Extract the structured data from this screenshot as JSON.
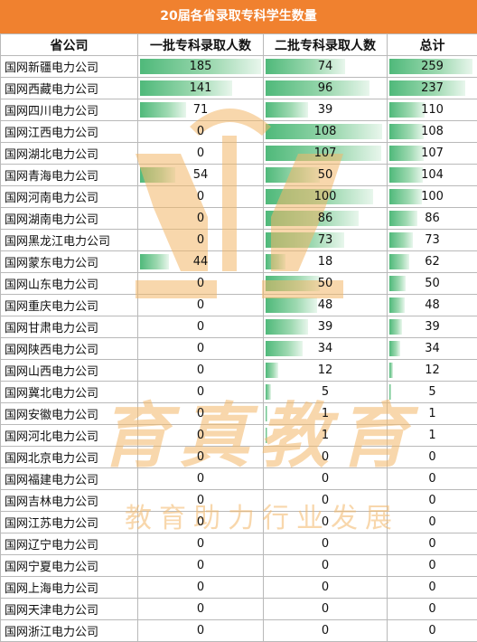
{
  "title": "20届各省录取专科学生数量",
  "headers": [
    "省公司",
    "一批专科录取人数",
    "二批专科录取人数",
    "总计"
  ],
  "max": {
    "first": 185,
    "second": 108,
    "total": 259
  },
  "rows": [
    {
      "name": "国网新疆电力公司",
      "first": "185",
      "second": "74",
      "total": "259"
    },
    {
      "name": "国网西藏电力公司",
      "first": "141",
      "second": "96",
      "total": "237"
    },
    {
      "name": "国网四川电力公司",
      "first": "71",
      "second": "39",
      "total": "110"
    },
    {
      "name": "国网江西电力公司",
      "first": "0",
      "second": "108",
      "total": "108"
    },
    {
      "name": "国网湖北电力公司",
      "first": "0",
      "second": "107",
      "total": "107"
    },
    {
      "name": "国网青海电力公司",
      "first": "54",
      "second": "50",
      "total": "104"
    },
    {
      "name": "国网河南电力公司",
      "first": "0",
      "second": "100",
      "total": "100"
    },
    {
      "name": "国网湖南电力公司",
      "first": "0",
      "second": "86",
      "total": "86"
    },
    {
      "name": "国网黑龙江电力公司",
      "first": "0",
      "second": "73",
      "total": "73"
    },
    {
      "name": "国网蒙东电力公司",
      "first": "44",
      "second": "18",
      "total": "62"
    },
    {
      "name": "国网山东电力公司",
      "first": "0",
      "second": "50",
      "total": "50"
    },
    {
      "name": "国网重庆电力公司",
      "first": "0",
      "second": "48",
      "total": "48"
    },
    {
      "name": "国网甘肃电力公司",
      "first": "0",
      "second": "39",
      "total": "39"
    },
    {
      "name": "国网陕西电力公司",
      "first": "0",
      "second": "34",
      "total": "34"
    },
    {
      "name": "国网山西电力公司",
      "first": "0",
      "second": "12",
      "total": "12"
    },
    {
      "name": "国网冀北电力公司",
      "first": "0",
      "second": "5",
      "total": "5"
    },
    {
      "name": "国网安徽电力公司",
      "first": "0",
      "second": "1",
      "total": "1"
    },
    {
      "name": "国网河北电力公司",
      "first": "0",
      "second": "1",
      "total": "1"
    },
    {
      "name": "国网北京电力公司",
      "first": "0",
      "second": "0",
      "total": "0"
    },
    {
      "name": "国网福建电力公司",
      "first": "0",
      "second": "0",
      "total": "0"
    },
    {
      "name": "国网吉林电力公司",
      "first": "0",
      "second": "0",
      "total": "0"
    },
    {
      "name": "国网江苏电力公司",
      "first": "0",
      "second": "0",
      "total": "0"
    },
    {
      "name": "国网辽宁电力公司",
      "first": "0",
      "second": "0",
      "total": "0"
    },
    {
      "name": "国网宁夏电力公司",
      "first": "0",
      "second": "0",
      "total": "0"
    },
    {
      "name": "国网上海电力公司",
      "first": "0",
      "second": "0",
      "total": "0"
    },
    {
      "name": "国网天津电力公司",
      "first": "0",
      "second": "0",
      "total": "0"
    },
    {
      "name": "国网浙江电力公司",
      "first": "0",
      "second": "0",
      "total": "0"
    }
  ],
  "watermark": {
    "logo_text": "育真教育",
    "slogan": "教育助力行业发展",
    "color": "#f5c98a"
  }
}
